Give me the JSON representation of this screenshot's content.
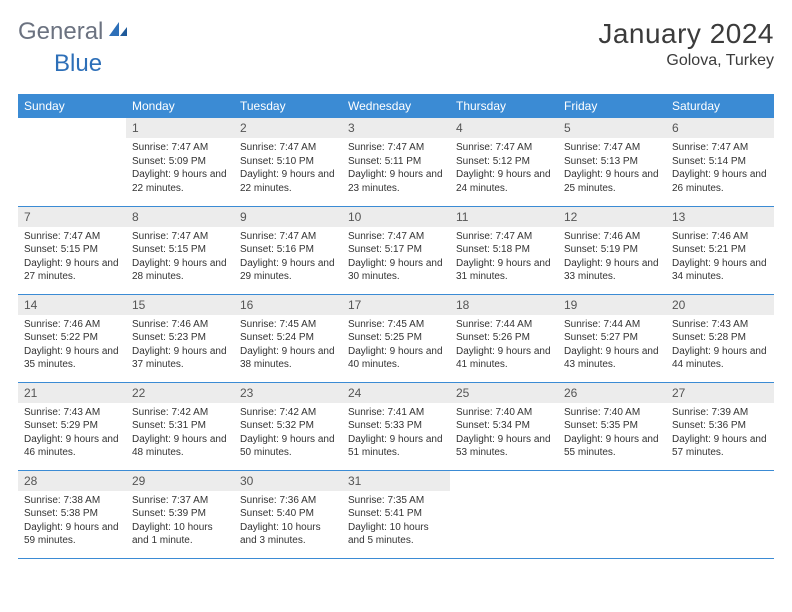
{
  "brand": {
    "word1": "General",
    "word2": "Blue"
  },
  "title": {
    "month": "January 2024",
    "location": "Golova, Turkey"
  },
  "colors": {
    "header_bg": "#3b8bd4",
    "header_text": "#ffffff",
    "daynum_bg": "#ececec",
    "rule": "#3b8bd4",
    "logo_gray": "#6b7280",
    "logo_blue": "#2d6fb8"
  },
  "weekdays": [
    "Sunday",
    "Monday",
    "Tuesday",
    "Wednesday",
    "Thursday",
    "Friday",
    "Saturday"
  ],
  "weeks": [
    [
      {
        "n": "",
        "sunrise": "",
        "sunset": "",
        "daylight": ""
      },
      {
        "n": "1",
        "sunrise": "Sunrise: 7:47 AM",
        "sunset": "Sunset: 5:09 PM",
        "daylight": "Daylight: 9 hours and 22 minutes."
      },
      {
        "n": "2",
        "sunrise": "Sunrise: 7:47 AM",
        "sunset": "Sunset: 5:10 PM",
        "daylight": "Daylight: 9 hours and 22 minutes."
      },
      {
        "n": "3",
        "sunrise": "Sunrise: 7:47 AM",
        "sunset": "Sunset: 5:11 PM",
        "daylight": "Daylight: 9 hours and 23 minutes."
      },
      {
        "n": "4",
        "sunrise": "Sunrise: 7:47 AM",
        "sunset": "Sunset: 5:12 PM",
        "daylight": "Daylight: 9 hours and 24 minutes."
      },
      {
        "n": "5",
        "sunrise": "Sunrise: 7:47 AM",
        "sunset": "Sunset: 5:13 PM",
        "daylight": "Daylight: 9 hours and 25 minutes."
      },
      {
        "n": "6",
        "sunrise": "Sunrise: 7:47 AM",
        "sunset": "Sunset: 5:14 PM",
        "daylight": "Daylight: 9 hours and 26 minutes."
      }
    ],
    [
      {
        "n": "7",
        "sunrise": "Sunrise: 7:47 AM",
        "sunset": "Sunset: 5:15 PM",
        "daylight": "Daylight: 9 hours and 27 minutes."
      },
      {
        "n": "8",
        "sunrise": "Sunrise: 7:47 AM",
        "sunset": "Sunset: 5:15 PM",
        "daylight": "Daylight: 9 hours and 28 minutes."
      },
      {
        "n": "9",
        "sunrise": "Sunrise: 7:47 AM",
        "sunset": "Sunset: 5:16 PM",
        "daylight": "Daylight: 9 hours and 29 minutes."
      },
      {
        "n": "10",
        "sunrise": "Sunrise: 7:47 AM",
        "sunset": "Sunset: 5:17 PM",
        "daylight": "Daylight: 9 hours and 30 minutes."
      },
      {
        "n": "11",
        "sunrise": "Sunrise: 7:47 AM",
        "sunset": "Sunset: 5:18 PM",
        "daylight": "Daylight: 9 hours and 31 minutes."
      },
      {
        "n": "12",
        "sunrise": "Sunrise: 7:46 AM",
        "sunset": "Sunset: 5:19 PM",
        "daylight": "Daylight: 9 hours and 33 minutes."
      },
      {
        "n": "13",
        "sunrise": "Sunrise: 7:46 AM",
        "sunset": "Sunset: 5:21 PM",
        "daylight": "Daylight: 9 hours and 34 minutes."
      }
    ],
    [
      {
        "n": "14",
        "sunrise": "Sunrise: 7:46 AM",
        "sunset": "Sunset: 5:22 PM",
        "daylight": "Daylight: 9 hours and 35 minutes."
      },
      {
        "n": "15",
        "sunrise": "Sunrise: 7:46 AM",
        "sunset": "Sunset: 5:23 PM",
        "daylight": "Daylight: 9 hours and 37 minutes."
      },
      {
        "n": "16",
        "sunrise": "Sunrise: 7:45 AM",
        "sunset": "Sunset: 5:24 PM",
        "daylight": "Daylight: 9 hours and 38 minutes."
      },
      {
        "n": "17",
        "sunrise": "Sunrise: 7:45 AM",
        "sunset": "Sunset: 5:25 PM",
        "daylight": "Daylight: 9 hours and 40 minutes."
      },
      {
        "n": "18",
        "sunrise": "Sunrise: 7:44 AM",
        "sunset": "Sunset: 5:26 PM",
        "daylight": "Daylight: 9 hours and 41 minutes."
      },
      {
        "n": "19",
        "sunrise": "Sunrise: 7:44 AM",
        "sunset": "Sunset: 5:27 PM",
        "daylight": "Daylight: 9 hours and 43 minutes."
      },
      {
        "n": "20",
        "sunrise": "Sunrise: 7:43 AM",
        "sunset": "Sunset: 5:28 PM",
        "daylight": "Daylight: 9 hours and 44 minutes."
      }
    ],
    [
      {
        "n": "21",
        "sunrise": "Sunrise: 7:43 AM",
        "sunset": "Sunset: 5:29 PM",
        "daylight": "Daylight: 9 hours and 46 minutes."
      },
      {
        "n": "22",
        "sunrise": "Sunrise: 7:42 AM",
        "sunset": "Sunset: 5:31 PM",
        "daylight": "Daylight: 9 hours and 48 minutes."
      },
      {
        "n": "23",
        "sunrise": "Sunrise: 7:42 AM",
        "sunset": "Sunset: 5:32 PM",
        "daylight": "Daylight: 9 hours and 50 minutes."
      },
      {
        "n": "24",
        "sunrise": "Sunrise: 7:41 AM",
        "sunset": "Sunset: 5:33 PM",
        "daylight": "Daylight: 9 hours and 51 minutes."
      },
      {
        "n": "25",
        "sunrise": "Sunrise: 7:40 AM",
        "sunset": "Sunset: 5:34 PM",
        "daylight": "Daylight: 9 hours and 53 minutes."
      },
      {
        "n": "26",
        "sunrise": "Sunrise: 7:40 AM",
        "sunset": "Sunset: 5:35 PM",
        "daylight": "Daylight: 9 hours and 55 minutes."
      },
      {
        "n": "27",
        "sunrise": "Sunrise: 7:39 AM",
        "sunset": "Sunset: 5:36 PM",
        "daylight": "Daylight: 9 hours and 57 minutes."
      }
    ],
    [
      {
        "n": "28",
        "sunrise": "Sunrise: 7:38 AM",
        "sunset": "Sunset: 5:38 PM",
        "daylight": "Daylight: 9 hours and 59 minutes."
      },
      {
        "n": "29",
        "sunrise": "Sunrise: 7:37 AM",
        "sunset": "Sunset: 5:39 PM",
        "daylight": "Daylight: 10 hours and 1 minute."
      },
      {
        "n": "30",
        "sunrise": "Sunrise: 7:36 AM",
        "sunset": "Sunset: 5:40 PM",
        "daylight": "Daylight: 10 hours and 3 minutes."
      },
      {
        "n": "31",
        "sunrise": "Sunrise: 7:35 AM",
        "sunset": "Sunset: 5:41 PM",
        "daylight": "Daylight: 10 hours and 5 minutes."
      },
      {
        "n": "",
        "sunrise": "",
        "sunset": "",
        "daylight": ""
      },
      {
        "n": "",
        "sunrise": "",
        "sunset": "",
        "daylight": ""
      },
      {
        "n": "",
        "sunrise": "",
        "sunset": "",
        "daylight": ""
      }
    ]
  ]
}
